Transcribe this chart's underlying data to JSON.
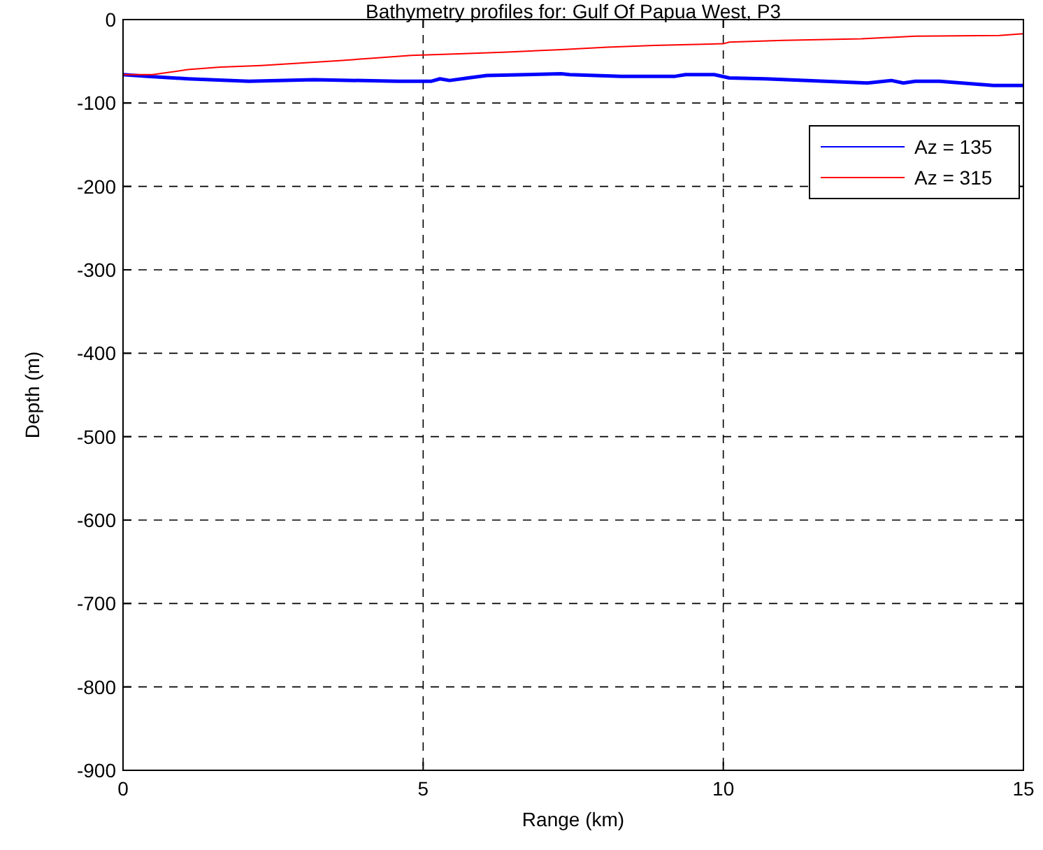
{
  "chart_data": {
    "type": "line",
    "title": "Bathymetry profiles for: Gulf Of Papua West, P3",
    "xlabel": "Range (km)",
    "ylabel": "Depth (m)",
    "xlim": [
      0,
      15
    ],
    "xticks": [
      0,
      5,
      10,
      15
    ],
    "ylim": [
      -900,
      0
    ],
    "yticks": [
      -900,
      -800,
      -700,
      -600,
      -500,
      -400,
      -300,
      -200,
      -100,
      0
    ],
    "grid": true,
    "legend": "top right",
    "line_style": "solid",
    "marker": "none",
    "series": [
      {
        "name": "Az = 135",
        "color": "#0000ff",
        "x": [
          0,
          0.41,
          1.08,
          2.1,
          3.18,
          4.58,
          5.13,
          5.28,
          5.44,
          5.75,
          6.06,
          7.3,
          7.44,
          8.3,
          9.2,
          9.37,
          9.85,
          10.1,
          10.7,
          12.4,
          12.8,
          13.0,
          13.2,
          13.6,
          14.5,
          15
        ],
        "values": [
          -66,
          -68,
          -71,
          -74,
          -72,
          -74,
          -74,
          -71,
          -73,
          -70,
          -67,
          -65,
          -66,
          -68,
          -68,
          -66,
          -66,
          -70,
          -71,
          -76,
          -73,
          -76,
          -74,
          -74,
          -79,
          -79
        ]
      },
      {
        "name": "Az = 315",
        "color": "#ff0000",
        "x": [
          0,
          0.49,
          1.08,
          1.62,
          2.3,
          3.0,
          3.65,
          4.2,
          4.8,
          5.6,
          6.4,
          7.3,
          8.07,
          8.84,
          10.0,
          10.1,
          11.0,
          12.3,
          13.2,
          14.6,
          15
        ],
        "values": [
          -66,
          -66,
          -60,
          -57,
          -55,
          -52,
          -49,
          -46,
          -43,
          -41,
          -39,
          -36,
          -33,
          -31,
          -29,
          -27,
          -25,
          -23,
          -20,
          -19,
          -17
        ]
      }
    ]
  }
}
